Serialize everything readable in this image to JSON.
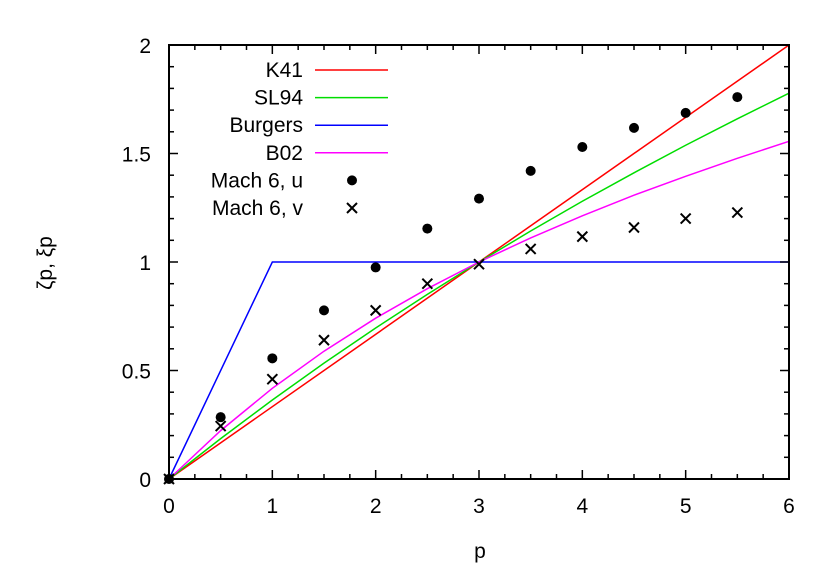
{
  "chart_data": {
    "type": "line",
    "xlabel": "p",
    "ylabel": "ζp, ξp",
    "xlim": [
      0,
      6
    ],
    "ylim": [
      0,
      2
    ],
    "xticks": [
      "0",
      "1",
      "2",
      "3",
      "4",
      "5",
      "6"
    ],
    "yticks": [
      "0",
      "0.5",
      "1",
      "1.5",
      "2"
    ],
    "grid": false,
    "legend_position": "top-left",
    "series": [
      {
        "name": "K41",
        "kind": "line",
        "color": "#ff0000",
        "x": [
          0,
          6
        ],
        "y": [
          0,
          2
        ]
      },
      {
        "name": "SL94",
        "kind": "line",
        "color": "#00dd00",
        "x": [
          0,
          0.5,
          1,
          1.5,
          2,
          2.5,
          3,
          3.5,
          4,
          4.5,
          5,
          5.5,
          6
        ],
        "y": [
          0,
          0.186,
          0.364,
          0.534,
          0.696,
          0.851,
          1.0,
          1.143,
          1.28,
          1.411,
          1.538,
          1.66,
          1.778
        ]
      },
      {
        "name": "Burgers",
        "kind": "line",
        "color": "#0000ff",
        "x": [
          0,
          1,
          6
        ],
        "y": [
          0,
          1,
          1
        ]
      },
      {
        "name": "B02",
        "kind": "line",
        "color": "#ff00ff",
        "x": [
          0,
          0.5,
          1,
          1.5,
          2,
          2.5,
          3,
          3.5,
          4,
          4.5,
          5,
          5.5,
          6
        ],
        "y": [
          0,
          0.223,
          0.418,
          0.589,
          0.741,
          0.877,
          1.0,
          1.111,
          1.213,
          1.308,
          1.395,
          1.478,
          1.556
        ]
      },
      {
        "name": "Mach 6, u",
        "kind": "dot",
        "color": "#000000",
        "x": [
          0,
          0.5,
          1,
          1.5,
          2,
          2.5,
          3,
          3.5,
          4,
          4.5,
          5,
          5.5
        ],
        "y": [
          0,
          0.285,
          0.556,
          0.777,
          0.975,
          1.154,
          1.292,
          1.42,
          1.53,
          1.618,
          1.687,
          1.76
        ]
      },
      {
        "name": "Mach 6, v",
        "kind": "cross",
        "color": "#000000",
        "x": [
          0,
          0.5,
          1,
          1.5,
          2,
          2.5,
          3,
          3.5,
          4,
          4.5,
          5,
          5.5
        ],
        "y": [
          0,
          0.244,
          0.46,
          0.64,
          0.777,
          0.9,
          0.99,
          1.06,
          1.117,
          1.159,
          1.2,
          1.228
        ]
      }
    ]
  }
}
